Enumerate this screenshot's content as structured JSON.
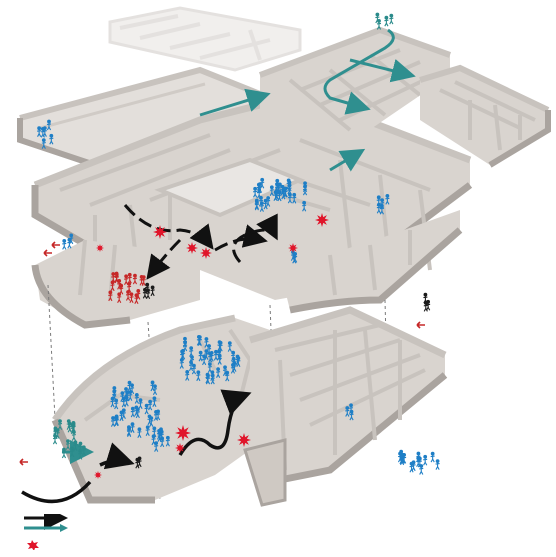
{
  "diagram": {
    "colors": {
      "background": "#ffffff",
      "floor": "#d9d4cf",
      "floor_faded": "#e6e3e0",
      "wall": "#c8c3be",
      "wall_shadow": "#aaa49f",
      "wall_top": "#ffffff",
      "people_blue": "#1f7fc6",
      "people_teal": "#2a8b8b",
      "people_red": "#c62828",
      "people_black": "#1b1b1b",
      "arrow_teal": "#2f8f8f",
      "arrow_black": "#111111",
      "explosion_red": "#e0152a",
      "guide_line": "#7a7a7a"
    },
    "levels": [
      {
        "name": "upper-level"
      },
      {
        "name": "lower-level"
      }
    ],
    "icons": [
      "person-figure-icon",
      "explosion-icon",
      "route-arrow-icon",
      "arrow-icon"
    ],
    "legend": [
      {
        "name": "legend-black-route",
        "color": "#111111"
      },
      {
        "name": "legend-teal-arrow",
        "color": "#2f8f8f"
      },
      {
        "name": "legend-explosion",
        "color": "#e0152a"
      }
    ]
  }
}
